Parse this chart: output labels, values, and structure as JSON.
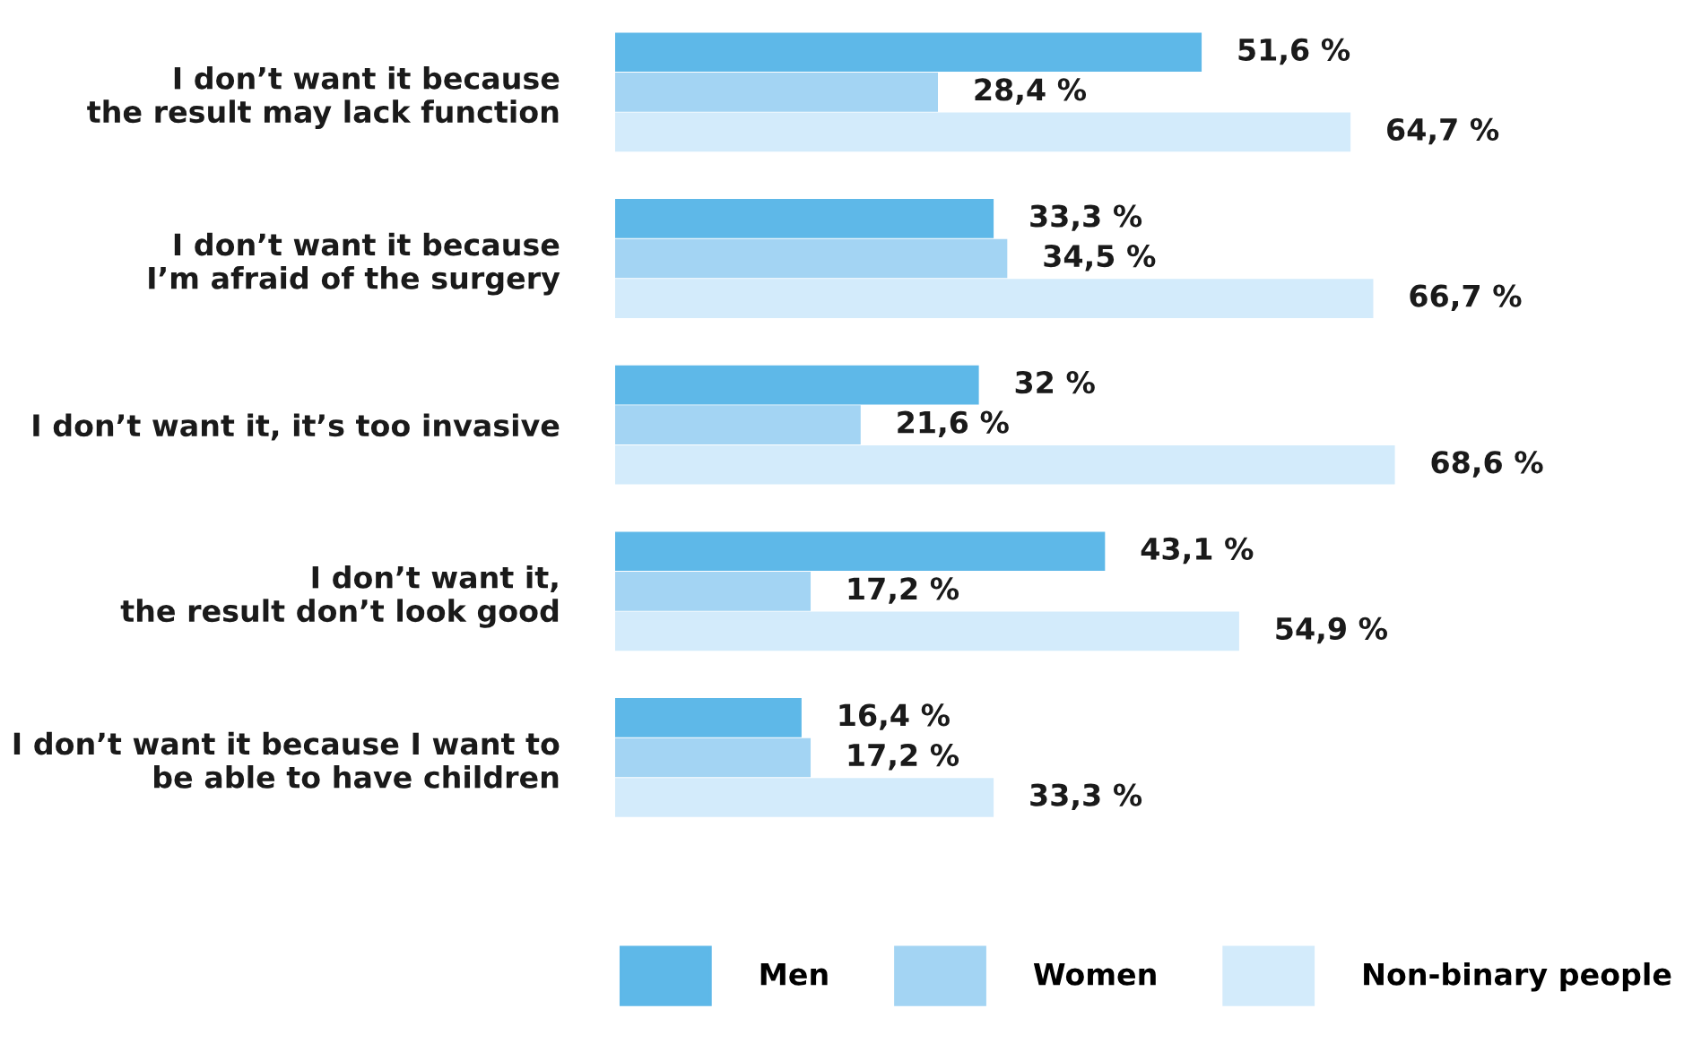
{
  "chart_data": {
    "type": "bar",
    "orientation": "horizontal",
    "legend": "bottom",
    "grid": false,
    "categories": [
      "I don’t want it because\nthe result may lack function",
      "I don’t want it because\nI’m afraid of the surgery",
      "I don’t want it, it’s too invasive",
      "I don’t want it,\nthe result don’t look good",
      "I don’t want it because I want to\nbe able to have children"
    ],
    "series": [
      {
        "name": "Men",
        "color": "#5eb8e8",
        "values": [
          51.6,
          33.3,
          32,
          43.1,
          16.4
        ],
        "value_labels": [
          "51,6 %",
          "33,3 %",
          "32 %",
          "43,1 %",
          "16,4 %"
        ]
      },
      {
        "name": "Women",
        "color": "#a3d4f3",
        "values": [
          28.4,
          34.5,
          21.6,
          17.2,
          17.2
        ],
        "value_labels": [
          "28,4 %",
          "34,5 %",
          "21,6 %",
          "17,2 %",
          "17,2 %"
        ]
      },
      {
        "name": "Non-binary people",
        "color": "#d3ebfb",
        "values": [
          64.7,
          66.7,
          68.6,
          54.9,
          33.3
        ],
        "value_labels": [
          "64,7 %",
          "66,7 %",
          "68,6 %",
          "54,9 %",
          "33,3 %"
        ]
      }
    ]
  }
}
